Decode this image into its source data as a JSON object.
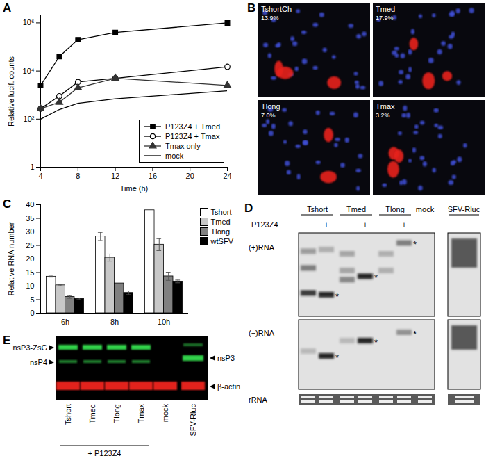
{
  "chart_data": [
    {
      "type": "line",
      "title": "A",
      "x_label": "Time (h)",
      "y_label": "Relative lucif. counts",
      "log": "y",
      "x": [
        4,
        6,
        8,
        12,
        24
      ],
      "series": [
        {
          "name": "P123Z4 + Tmed",
          "color": "#000000",
          "marker": "square",
          "values": [
            2500,
            40000,
            200000,
            400000,
            1000000
          ]
        },
        {
          "name": "P123Z4 + Tmax",
          "color": "#000000",
          "marker": "open-circle",
          "values": [
            270,
            900,
            3500,
            5000,
            15000
          ]
        },
        {
          "name": "Tmax only",
          "color": "#333333",
          "marker": "triangle",
          "values": [
            270,
            500,
            2000,
            5000,
            2500
          ]
        },
        {
          "name": "mock",
          "color": "#000000",
          "marker": "none",
          "values": [
            100,
            250,
            450,
            700,
            1500
          ]
        }
      ],
      "xlim": [
        4,
        24
      ],
      "xticks": [
        4,
        8,
        12,
        16,
        20,
        24
      ],
      "ylim": [
        1,
        2000000
      ],
      "yticks": [
        1,
        {
          "value": 100,
          "label": "10²"
        },
        {
          "value": 10000,
          "label": "10⁴"
        },
        {
          "value": 1000000,
          "label": "10⁶"
        }
      ],
      "legend": "bottom-right"
    },
    {
      "type": "bar",
      "title": "C",
      "y_label": "Relative RNA number",
      "categories": [
        "6h",
        "8h",
        "10h"
      ],
      "series": [
        {
          "name": "Tshort",
          "color": "#ffffff",
          "values": [
            13.5,
            28.3,
            38
          ],
          "errors": [
            0.2,
            1.5,
            0
          ]
        },
        {
          "name": "Tmed",
          "color": "#c8c8c8",
          "values": [
            10.3,
            20.5,
            25.3
          ],
          "errors": [
            0.2,
            1.3,
            2.2
          ]
        },
        {
          "name": "Tlong",
          "color": "#808080",
          "values": [
            6,
            11,
            13.6
          ],
          "errors": [
            0.5,
            0,
            1.5
          ]
        },
        {
          "name": "wtSFV",
          "color": "#000000",
          "values": [
            5.3,
            7.5,
            11.7
          ],
          "errors": [
            0.3,
            0.7,
            0.5
          ]
        }
      ],
      "ylim": [
        0,
        40
      ],
      "yticks": [
        0,
        5,
        10,
        15,
        20,
        25,
        30,
        35,
        40
      ],
      "legend": "top-right"
    }
  ],
  "micrographs": {
    "title": "B",
    "images": [
      {
        "name": "TshortCh",
        "percent": "13.9%"
      },
      {
        "name": "Tmed",
        "percent": "17.9%"
      },
      {
        "name": "Tlong",
        "percent": "7.0%"
      },
      {
        "name": "Tmax",
        "percent": "3.2%"
      }
    ]
  },
  "northern_blot": {
    "title": "D",
    "groups": [
      "Tshort",
      "Tmed",
      "Tlong"
    ],
    "control": "mock",
    "reference": "SFV-Rluc",
    "treatment": "P123Z4",
    "signs": [
      "−",
      "+"
    ],
    "rows": [
      "(+)RNA",
      "(−)RNA",
      "rRNA"
    ],
    "band_mark": "*"
  },
  "western_blot": {
    "title": "E",
    "treated": [
      "Tshort",
      "Tmed",
      "Tlong",
      "Tmax"
    ],
    "others": [
      "mock",
      "SFV-Rluc"
    ],
    "treatment": "+ P123Z4",
    "left_labels": [
      "nsP3-ZsG",
      "nsP4"
    ],
    "right_labels": [
      "nsP3",
      "β-actin"
    ]
  }
}
